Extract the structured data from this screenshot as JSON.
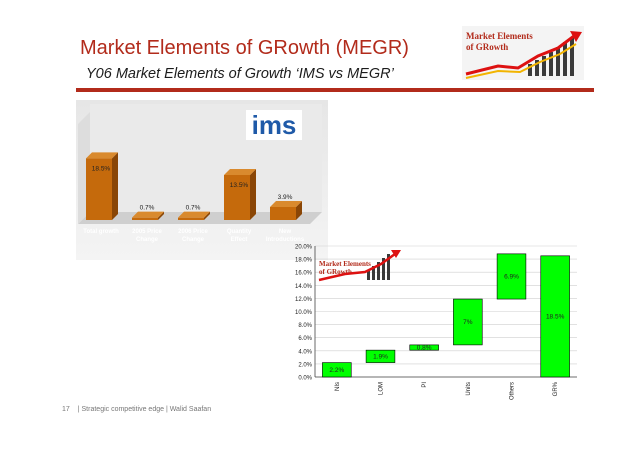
{
  "header": {
    "title": "Market Elements of GRowth (MEGR)",
    "subtitle": "Y06 Market Elements of Growth ‘IMS vs MEGR’"
  },
  "logo": {
    "line1": "Market Elements",
    "line2": "of GRowth"
  },
  "ims_chart": {
    "brand": "ims",
    "chart_data": {
      "type": "bar",
      "categories": [
        "Total growth",
        "2005 Price Change",
        "2006 Price Change",
        "Quantity Effect",
        "New Introductions"
      ],
      "values": [
        18.5,
        0.7,
        0.7,
        13.5,
        3.9
      ],
      "labels": [
        "18.5%",
        "0.7%",
        "0.7%",
        "13.5%",
        "3.9%"
      ],
      "ylim": [
        0,
        30
      ],
      "colors": {
        "bar": "#c56a0c",
        "bar_side": "#8a4606",
        "bar_top": "#d98a2e"
      }
    }
  },
  "waterfall_chart": {
    "chart_data": {
      "type": "bar",
      "categories": [
        "NIs",
        "LOM",
        "PI",
        "Units",
        "Others",
        "GR%"
      ],
      "values": [
        2.2,
        1.9,
        0.8,
        7.0,
        6.9,
        18.5
      ],
      "labels": [
        "2.2%",
        "1.9%",
        "0.8%",
        "7%",
        "6.9%",
        "18.5%"
      ],
      "ylim": [
        0,
        20
      ],
      "yticks": [
        "0.0%",
        "2.0%",
        "4.0%",
        "6.0%",
        "8.0%",
        "10.0%",
        "12.0%",
        "14.0%",
        "16.0%",
        "18.0%",
        "20.0%"
      ],
      "grid": true,
      "colors": {
        "bar": "#00ff00",
        "border": "#000000"
      }
    },
    "logo": {
      "line1": "Market Elements",
      "line2": "of GRowth"
    }
  },
  "footer": {
    "page": "17",
    "text": "| Strategic competitive edge  | Walid Saafan"
  }
}
